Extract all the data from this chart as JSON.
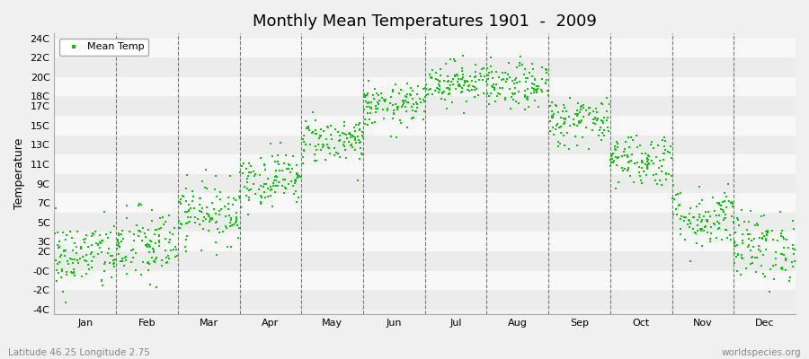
{
  "title": "Monthly Mean Temperatures 1901  -  2009",
  "ylabel": "Temperature",
  "subtitle_left": "Latitude 46.25 Longitude 2.75",
  "subtitle_right": "worldspecies.org",
  "legend_label": "Mean Temp",
  "dot_color": "#00CC00",
  "band_color_light": "#ECECEC",
  "band_color_dark": "#F8F8F8",
  "fig_bg_color": "#F0F0F0",
  "ytick_labels": [
    "-4C",
    "-2C",
    "-0C",
    "2C",
    "3C",
    "5C",
    "7C",
    "9C",
    "11C",
    "13C",
    "15C",
    "17C",
    "18C",
    "20C",
    "22C",
    "24C"
  ],
  "ytick_values": [
    -4,
    -2,
    0,
    2,
    3,
    5,
    7,
    9,
    11,
    13,
    15,
    17,
    18,
    20,
    22,
    24
  ],
  "band_edges": [
    -4,
    -2,
    0,
    2,
    4,
    6,
    8,
    10,
    12,
    14,
    16,
    18,
    20,
    22,
    24
  ],
  "ylim": [
    -4.5,
    24.5
  ],
  "months": [
    "Jan",
    "Feb",
    "Mar",
    "Apr",
    "May",
    "Jun",
    "Jul",
    "Aug",
    "Sep",
    "Oct",
    "Nov",
    "Dec"
  ],
  "month_centers": [
    0.5,
    1.5,
    2.5,
    3.5,
    4.5,
    5.5,
    6.5,
    7.5,
    8.5,
    9.5,
    10.5,
    11.5
  ],
  "month_boundaries": [
    1,
    2,
    3,
    4,
    5,
    6,
    7,
    8,
    9,
    10,
    11
  ],
  "seed": 42,
  "n_years": 109,
  "mean_temps": [
    1.5,
    2.5,
    6.0,
    9.5,
    13.5,
    17.0,
    19.5,
    19.0,
    15.5,
    11.5,
    5.5,
    2.5
  ],
  "std_temps": [
    1.8,
    2.0,
    1.6,
    1.4,
    1.2,
    1.1,
    1.1,
    1.2,
    1.3,
    1.4,
    1.6,
    1.8
  ]
}
